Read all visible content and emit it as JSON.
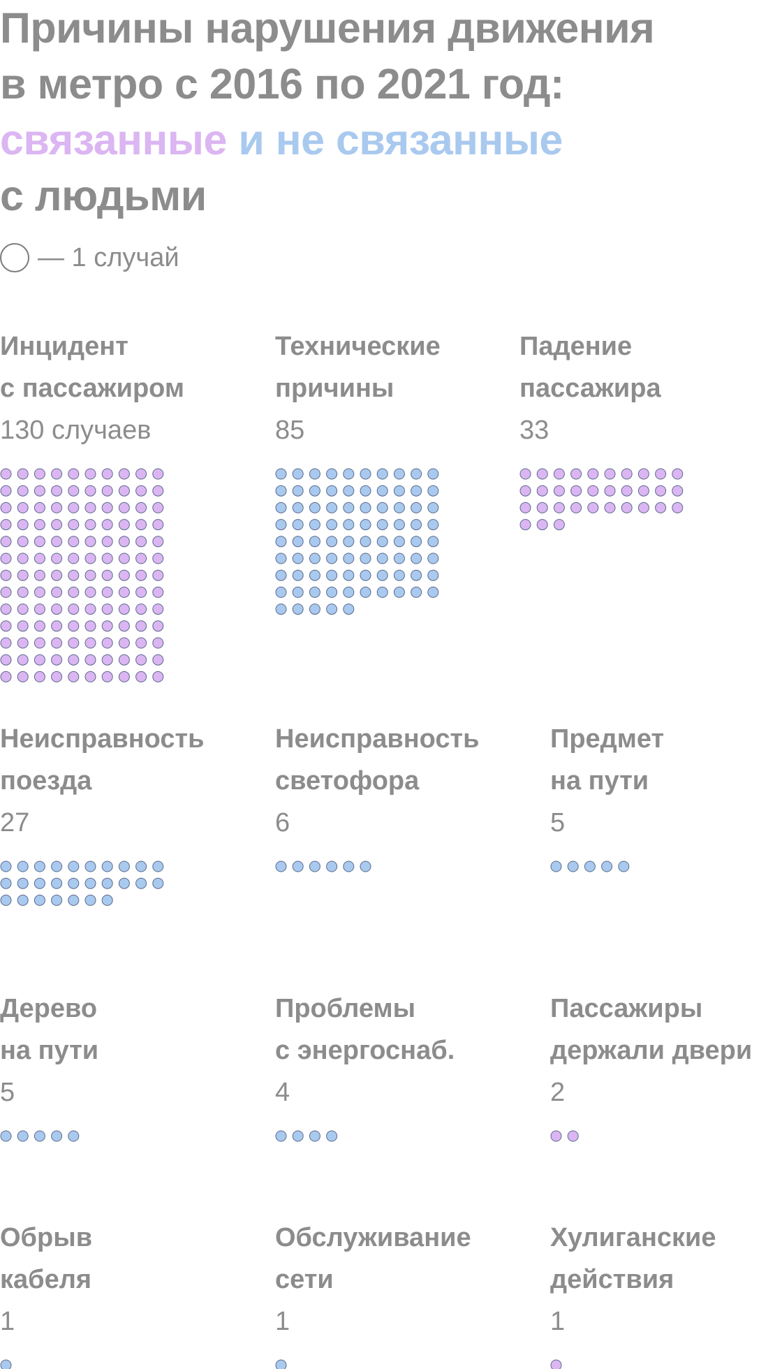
{
  "title": {
    "line1": "Причины нарушения движения",
    "line2": "в метро с 2016 по 2021 год:",
    "line3_part1": "связанные",
    "line3_part2": "и не связанные",
    "line4": "с людьми"
  },
  "legend": {
    "text": "— 1 случай"
  },
  "colors": {
    "human": "#dbb6f2",
    "other": "#a9c9ef",
    "dot_stroke": "#5a6a8a",
    "text": "#8c8c8c"
  },
  "chart_data": {
    "type": "unit-dot grid",
    "unit": "1 случай",
    "categories_legend": [
      {
        "group": "human",
        "label": "связанные"
      },
      {
        "group": "other",
        "label": "и не связанные"
      }
    ],
    "items": [
      {
        "label_line1": "Инцидент",
        "label_line2": "с пассажиром",
        "count_text": "130 случаев",
        "value": 130,
        "group": "human"
      },
      {
        "label_line1": "Технические",
        "label_line2": "причины",
        "count_text": "85",
        "value": 85,
        "group": "other"
      },
      {
        "label_line1": "Падение",
        "label_line2": "пассажира",
        "count_text": "33",
        "value": 33,
        "group": "human"
      },
      {
        "label_line1": "Неисправность",
        "label_line2": "поезда",
        "count_text": "27",
        "value": 27,
        "group": "other"
      },
      {
        "label_line1": "Неисправность",
        "label_line2": "светофора",
        "count_text": "6",
        "value": 6,
        "group": "other"
      },
      {
        "label_line1": "Предмет",
        "label_line2": "на пути",
        "count_text": "5",
        "value": 5,
        "group": "other"
      },
      {
        "label_line1": "Дерево",
        "label_line2": "на пути",
        "count_text": "5",
        "value": 5,
        "group": "other"
      },
      {
        "label_line1": "Проблемы",
        "label_line2": "с энергоснаб.",
        "count_text": "4",
        "value": 4,
        "group": "other"
      },
      {
        "label_line1": "Пассажиры",
        "label_line2": "держали двери",
        "count_text": "2",
        "value": 2,
        "group": "human"
      },
      {
        "label_line1": "Обрыв",
        "label_line2": "кабеля",
        "count_text": "1",
        "value": 1,
        "group": "other"
      },
      {
        "label_line1": "Обслуживание",
        "label_line2": "сети",
        "count_text": "1",
        "value": 1,
        "group": "other"
      },
      {
        "label_line1": "Хулиганские",
        "label_line2": "действия",
        "count_text": "1",
        "value": 1,
        "group": "human"
      }
    ]
  }
}
